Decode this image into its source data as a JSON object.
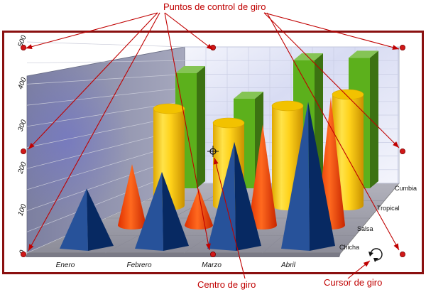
{
  "callouts": {
    "control_points": "Puntos de control de giro",
    "center": "Centro de giro",
    "cursor": "Cursor de giro"
  },
  "chart_data": {
    "type": "bar",
    "style": "3d-mixed-shapes",
    "categories": [
      "Enero",
      "Febrero",
      "Marzo",
      "Abril"
    ],
    "series_labels": [
      "Chicha",
      "Salsa",
      "Tropical",
      "Cumbia"
    ],
    "y_ticks": [
      "0",
      "100",
      "200",
      "300",
      "400",
      "500"
    ],
    "ylim": [
      0,
      500
    ],
    "grid": true,
    "series": [
      {
        "name": "Chicha",
        "shape": "pyramid",
        "color": "#0a3a8c",
        "values": [
          180,
          230,
          320,
          440
        ]
      },
      {
        "name": "Salsa",
        "shape": "cone",
        "color": "#ff4a10",
        "values": [
          200,
          120,
          330,
          420
        ]
      },
      {
        "name": "Tropical",
        "shape": "cylinder",
        "color": "#ffd21a",
        "values": [
          340,
          290,
          350,
          390
        ]
      },
      {
        "name": "Cumbia",
        "shape": "box",
        "color": "#5cb01c",
        "values": [
          450,
          350,
          500,
          510
        ]
      }
    ]
  },
  "colors": {
    "frame": "#8a1010",
    "callout": "#c00000",
    "handle": "#d01818",
    "back_wall": "#eef0fb",
    "side_wall": "#8f92ac",
    "floor": "#9c9ca8"
  },
  "icons": {
    "center": "crosshair-icon",
    "cursor": "rotate-cursor-icon"
  }
}
